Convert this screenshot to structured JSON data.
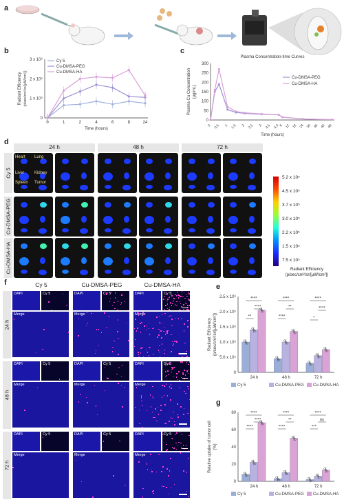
{
  "panels": {
    "a": "a",
    "b": "b",
    "c": "c",
    "d": "d",
    "e": "e",
    "f": "f",
    "g": "g"
  },
  "panel_b": {
    "ylabel": "Radiant Efficiency\n(p/sec/cm²/sr/[µW/cm²])",
    "xlabel": "Time (hours)",
    "legend": [
      "Cy 5",
      "Cu-DMSA-PEG",
      "Cu-DMSA-HA"
    ]
  },
  "panel_c": {
    "title": "Plasma Concentration-time Curves",
    "ylabel": "Plasma Cu Concentration\n(µg/mL)",
    "xlabel": "Time (hours)",
    "legend": [
      "Cu-DMSA-PEG",
      "Cu-DMSA-HA"
    ]
  },
  "panel_d": {
    "times": [
      "24 h",
      "48 h",
      "72 h"
    ],
    "rows": [
      "Cy 5",
      "Cu-DMSA-PEG",
      "Cu-DMSA-HA"
    ],
    "organs": [
      "Heart",
      "Lung",
      "Liver",
      "Kidney",
      "Spleen",
      "Tumor"
    ],
    "colorbar_ticks": [
      "5.2 x 10⁵",
      "4.5 x 10⁵",
      "3.7 x 10⁵",
      "3.0 x 10⁵",
      "2.2 x 10⁵",
      "1.5 x 10⁵",
      "7.5 x 10⁵"
    ],
    "colorbar_label": "Radiant Efficiency\n(p/sec/cm²/sr/[µW/cm²])"
  },
  "panel_f": {
    "cols": [
      "Cy 5",
      "Cu-DMSA-PEG",
      "Cu-DMSA-HA"
    ],
    "rows": [
      "24 h",
      "48 h",
      "72 h"
    ],
    "tags": {
      "dapi": "DAPI",
      "cy5": "Cy 5",
      "merge": "Merge"
    }
  },
  "chart_data": [
    {
      "type": "line",
      "panel": "b",
      "xlabel": "Time (hours)",
      "ylabel": "Radiant Efficiency (p/sec/cm²/sr/[µW/cm²])",
      "x": [
        "0",
        "1",
        "2",
        "4",
        "6",
        "8",
        "24"
      ],
      "y_ticks": [
        "0",
        "1 x 10⁹",
        "2 x 10⁹",
        "3 x 10⁹"
      ],
      "ylim": [
        0,
        3
      ],
      "series": [
        {
          "name": "Cy 5",
          "values": [
            0,
            0.65,
            0.7,
            0.85,
            0.7,
            0.85,
            0.75
          ]
        },
        {
          "name": "Cu-DMSA-PEG",
          "values": [
            0,
            1.0,
            1.35,
            1.7,
            1.55,
            1.1,
            1.05
          ]
        },
        {
          "name": "Cu-DMSA-HA",
          "values": [
            0,
            1.4,
            2.0,
            2.1,
            2.05,
            2.45,
            1.15
          ]
        }
      ]
    },
    {
      "type": "line",
      "panel": "c",
      "title": "Plasma Concentration-time Curves",
      "xlabel": "Time (hours)",
      "ylabel": "Plasma Cu Concentration (µg/mL)",
      "x_ticks": [
        "0",
        "0.5",
        "1",
        "1.5",
        "2",
        "2.5",
        "3",
        "3.5",
        "4.0",
        "6",
        "12",
        "18",
        "24",
        "30",
        "36",
        "42",
        "48"
      ],
      "y_ticks": [
        "0",
        "50",
        "100",
        "150",
        "200",
        "250",
        "300"
      ],
      "ylim": [
        0,
        300
      ],
      "series": [
        {
          "name": "Cu-DMSA-PEG",
          "x": [
            0,
            0.25,
            0.5,
            1,
            1.5,
            2,
            3,
            4,
            6,
            24,
            48
          ],
          "values": [
            0,
            150,
            190,
            55,
            40,
            35,
            30,
            28,
            15,
            5,
            2
          ]
        },
        {
          "name": "Cu-DMSA-HA",
          "x": [
            0,
            0.25,
            0.5,
            1,
            1.5,
            2,
            3,
            4,
            6,
            24,
            48
          ],
          "values": [
            0,
            160,
            270,
            70,
            45,
            38,
            32,
            28,
            15,
            5,
            2
          ]
        }
      ]
    },
    {
      "type": "bar",
      "panel": "e",
      "ylabel": "Radiant Efficiency (p/sec/cm²/sr/[µW/cm²])",
      "categories": [
        "24 h",
        "48 h",
        "72 h"
      ],
      "y_ticks": [
        "0",
        "5.0 x 10⁵",
        "1.0 x 10⁶",
        "1.5 x 10⁶",
        "2.0 x 10⁶",
        "2.5 x 10⁶"
      ],
      "ylim": [
        0,
        2.5
      ],
      "series": [
        {
          "name": "Cy 5",
          "values": [
            1.0,
            0.45,
            0.3
          ]
        },
        {
          "name": "Cu-DMSA-PEG",
          "values": [
            1.4,
            1.0,
            0.55
          ]
        },
        {
          "name": "Cu-DMSA-HA",
          "values": [
            2.05,
            1.35,
            0.75
          ]
        }
      ],
      "significance": [
        "****",
        "****",
        "**",
        "****",
        "**",
        "****",
        "****",
        "****",
        "*",
        "*"
      ]
    },
    {
      "type": "bar",
      "panel": "g",
      "ylabel": "Relative uptake of tumor cell (%)",
      "categories": [
        "24 h",
        "48 h",
        "72 h"
      ],
      "y_ticks": [
        "0",
        "20",
        "40",
        "60",
        "80"
      ],
      "ylim": [
        0,
        80
      ],
      "series": [
        {
          "name": "Cy 5",
          "values": [
            8,
            3,
            2
          ]
        },
        {
          "name": "Cu-DMSA-PEG",
          "values": [
            22,
            10,
            6
          ]
        },
        {
          "name": "Cu-DMSA-HA",
          "values": [
            68,
            50,
            13
          ]
        }
      ],
      "significance": [
        "****",
        "****",
        "****",
        "****",
        "****",
        "**",
        "****",
        "***",
        "ns",
        "*"
      ]
    }
  ],
  "colors": {
    "cy5": "#9aaed6",
    "peg": "#b8b2e0",
    "ha": "#d9a3d6",
    "line_cy5": "#9fb0db",
    "line_peg": "#9b8fd3",
    "line_ha": "#d8a0d8"
  }
}
